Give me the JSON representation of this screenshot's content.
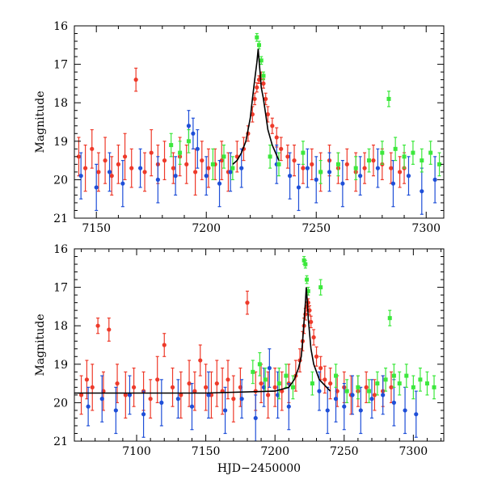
{
  "chart_data": [
    {
      "type": "scatter",
      "panel": "top",
      "title": "",
      "xlabel": "",
      "ylabel": "Magnitude",
      "xlim": [
        7140,
        7308
      ],
      "ylim": [
        21,
        16
      ],
      "y_inverted": true,
      "xticks": [
        7150,
        7200,
        7250,
        7300
      ],
      "xtick_labels": [
        "7150",
        "7200",
        "7250",
        "7300"
      ],
      "yticks": [
        16,
        17,
        18,
        19,
        20,
        21
      ],
      "ytick_labels": [
        "16",
        "17",
        "18",
        "19",
        "20",
        "21"
      ],
      "series": [
        {
          "name": "red",
          "color": "#ee3a2a",
          "x": [
            7142,
            7145,
            7148,
            7151,
            7154,
            7157,
            7160,
            7163,
            7166,
            7168,
            7172,
            7175,
            7178,
            7181,
            7185,
            7188,
            7191,
            7195,
            7198,
            7201,
            7204,
            7207,
            7210,
            7214,
            7217,
            7219,
            7221,
            7222,
            7223,
            7224,
            7225,
            7226,
            7227,
            7228,
            7230,
            7232,
            7234,
            7237,
            7240,
            7244,
            7248,
            7252,
            7256,
            7260,
            7264,
            7268,
            7272,
            7276,
            7280,
            7284,
            7288,
            7290
          ],
          "y": [
            19.4,
            19.7,
            19.2,
            19.8,
            19.5,
            19.9,
            19.6,
            19.4,
            19.7,
            17.4,
            19.8,
            19.3,
            19.6,
            19.5,
            19.7,
            19.4,
            19.6,
            19.8,
            19.5,
            19.7,
            19.6,
            19.5,
            19.8,
            19.4,
            19.2,
            18.8,
            18.3,
            17.9,
            17.6,
            17.4,
            17.3,
            17.5,
            17.9,
            18.3,
            18.6,
            18.9,
            19.2,
            19.4,
            19.5,
            19.7,
            19.6,
            19.8,
            19.5,
            19.7,
            19.6,
            19.8,
            19.7,
            19.5,
            19.6,
            19.7,
            19.8,
            19.7
          ],
          "yerr": [
            0.5,
            0.6,
            0.5,
            0.5,
            0.6,
            0.5,
            0.5,
            0.6,
            0.5,
            0.3,
            0.5,
            0.6,
            0.5,
            0.5,
            0.4,
            0.5,
            0.5,
            0.6,
            0.5,
            0.5,
            0.4,
            0.5,
            0.5,
            0.4,
            0.3,
            0.2,
            0.2,
            0.15,
            0.12,
            0.1,
            0.1,
            0.12,
            0.15,
            0.2,
            0.2,
            0.25,
            0.3,
            0.3,
            0.4,
            0.4,
            0.4,
            0.5,
            0.4,
            0.4,
            0.4,
            0.5,
            0.4,
            0.4,
            0.4,
            0.4,
            0.4,
            0.4
          ]
        },
        {
          "name": "blue",
          "color": "#1f4fd8",
          "x": [
            7143,
            7150,
            7156,
            7162,
            7170,
            7178,
            7186,
            7192,
            7194,
            7196,
            7200,
            7206,
            7211,
            7216,
            7232,
            7238,
            7242,
            7246,
            7250,
            7256,
            7262,
            7270,
            7278,
            7285,
            7292,
            7298,
            7304
          ],
          "y": [
            19.9,
            20.2,
            19.8,
            20.1,
            19.7,
            20.0,
            19.9,
            18.6,
            18.8,
            19.2,
            19.9,
            20.1,
            19.8,
            19.7,
            19.6,
            19.9,
            20.2,
            19.7,
            20.0,
            19.8,
            20.1,
            19.9,
            19.7,
            20.1,
            19.9,
            20.3,
            20.0
          ],
          "yerr": [
            0.6,
            0.6,
            0.5,
            0.6,
            0.5,
            0.6,
            0.5,
            0.4,
            0.4,
            0.5,
            0.5,
            0.6,
            0.5,
            0.5,
            0.5,
            0.6,
            0.6,
            0.5,
            0.6,
            0.5,
            0.6,
            0.5,
            0.5,
            0.6,
            0.5,
            0.6,
            0.6
          ]
        },
        {
          "name": "green",
          "color": "#3ce83c",
          "x": [
            7184,
            7188,
            7192,
            7203,
            7208,
            7212,
            7223,
            7224,
            7225,
            7226,
            7229,
            7233,
            7244,
            7252,
            7260,
            7268,
            7274,
            7280,
            7283,
            7286,
            7290,
            7294,
            7298,
            7302,
            7306
          ],
          "y": [
            19.1,
            19.3,
            19.0,
            19.6,
            19.4,
            19.7,
            16.3,
            16.5,
            16.9,
            17.3,
            19.4,
            19.6,
            19.3,
            19.8,
            19.6,
            19.7,
            19.5,
            19.3,
            17.9,
            19.2,
            19.4,
            19.3,
            19.5,
            19.3,
            19.6
          ],
          "yerr": [
            0.3,
            0.3,
            0.3,
            0.4,
            0.3,
            0.3,
            0.1,
            0.1,
            0.1,
            0.1,
            0.3,
            0.3,
            0.3,
            0.3,
            0.3,
            0.3,
            0.3,
            0.3,
            0.2,
            0.3,
            0.3,
            0.3,
            0.3,
            0.3,
            0.3
          ]
        }
      ],
      "model_curve": {
        "color": "#000000",
        "x": [
          7212,
          7214,
          7216,
          7218,
          7219,
          7220,
          7221,
          7222,
          7223,
          7223.6,
          7224,
          7224.6,
          7225,
          7226,
          7227,
          7228,
          7230,
          7233
        ],
        "y": [
          19.6,
          19.5,
          19.3,
          19.0,
          18.7,
          18.4,
          17.9,
          17.4,
          16.95,
          16.6,
          16.9,
          17.3,
          17.6,
          17.9,
          18.3,
          18.7,
          19.1,
          19.5
        ]
      }
    },
    {
      "type": "scatter",
      "panel": "bottom",
      "title": "",
      "xlabel": "HJD−2450000",
      "ylabel": "Magnitude",
      "xlim": [
        7055,
        7322
      ],
      "ylim": [
        21,
        16
      ],
      "y_inverted": true,
      "xticks": [
        7100,
        7150,
        7200,
        7250,
        7300
      ],
      "xtick_labels": [
        "7100",
        "7150",
        "7200",
        "7250",
        "7300"
      ],
      "yticks": [
        16,
        17,
        18,
        19,
        20,
        21
      ],
      "ytick_labels": [
        "16",
        "17",
        "18",
        "19",
        "20",
        "21"
      ],
      "series": [
        {
          "name": "red",
          "color": "#ee3a2a",
          "x": [
            7060,
            7064,
            7068,
            7072,
            7076,
            7080,
            7086,
            7092,
            7098,
            7105,
            7110,
            7115,
            7120,
            7126,
            7132,
            7138,
            7142,
            7146,
            7150,
            7154,
            7158,
            7162,
            7166,
            7170,
            7175,
            7180,
            7186,
            7190,
            7195,
            7200,
            7205,
            7210,
            7215,
            7218,
            7220,
            7221,
            7222,
            7223,
            7224,
            7225,
            7226,
            7228,
            7230,
            7233,
            7236,
            7240,
            7245,
            7250,
            7255,
            7260,
            7266,
            7272,
            7278,
            7284
          ],
          "y": [
            19.8,
            19.4,
            19.6,
            18.0,
            19.7,
            18.1,
            19.5,
            19.8,
            19.6,
            19.7,
            19.9,
            19.4,
            18.5,
            19.6,
            19.8,
            19.5,
            19.7,
            18.9,
            19.6,
            19.8,
            19.5,
            19.7,
            19.4,
            19.9,
            19.6,
            17.4,
            19.7,
            19.5,
            19.8,
            19.6,
            19.7,
            19.5,
            19.3,
            18.9,
            18.4,
            18.0,
            17.7,
            17.5,
            17.4,
            17.6,
            17.9,
            18.3,
            18.8,
            19.1,
            19.4,
            19.5,
            19.7,
            19.6,
            19.8,
            19.7,
            19.6,
            19.8,
            19.7,
            19.6
          ],
          "yerr": [
            0.5,
            0.5,
            0.6,
            0.2,
            0.5,
            0.3,
            0.5,
            0.6,
            0.5,
            0.5,
            0.5,
            0.6,
            0.3,
            0.5,
            0.6,
            0.6,
            0.5,
            0.4,
            0.6,
            0.6,
            0.6,
            0.6,
            0.5,
            0.6,
            0.5,
            0.3,
            0.5,
            0.5,
            0.6,
            0.5,
            0.5,
            0.5,
            0.4,
            0.3,
            0.25,
            0.2,
            0.15,
            0.12,
            0.1,
            0.12,
            0.15,
            0.2,
            0.25,
            0.3,
            0.35,
            0.4,
            0.4,
            0.4,
            0.5,
            0.4,
            0.4,
            0.4,
            0.4,
            0.4
          ]
        },
        {
          "name": "blue",
          "color": "#1f4fd8",
          "x": [
            7065,
            7075,
            7085,
            7095,
            7105,
            7118,
            7130,
            7140,
            7152,
            7164,
            7176,
            7186,
            7192,
            7196,
            7202,
            7210,
            7232,
            7238,
            7244,
            7250,
            7256,
            7262,
            7270,
            7278,
            7286,
            7294,
            7302
          ],
          "y": [
            20.1,
            19.9,
            20.2,
            19.8,
            20.3,
            20.0,
            19.9,
            20.1,
            19.8,
            20.2,
            19.9,
            20.4,
            19.6,
            19.1,
            19.8,
            20.1,
            19.7,
            20.2,
            19.9,
            20.1,
            19.8,
            20.2,
            19.9,
            19.8,
            20.0,
            20.2,
            20.3
          ],
          "yerr": [
            0.5,
            0.6,
            0.6,
            0.5,
            0.6,
            0.6,
            0.5,
            0.6,
            0.6,
            0.6,
            0.5,
            0.6,
            0.5,
            0.5,
            0.6,
            0.6,
            0.5,
            0.6,
            0.6,
            0.6,
            0.5,
            0.6,
            0.5,
            0.5,
            0.6,
            0.6,
            0.6
          ]
        },
        {
          "name": "green",
          "color": "#3ce83c",
          "x": [
            7184,
            7189,
            7193,
            7203,
            7208,
            7213,
            7221,
            7222,
            7223,
            7224,
            7227,
            7233,
            7244,
            7252,
            7260,
            7268,
            7274,
            7280,
            7283,
            7286,
            7290,
            7295,
            7300,
            7305,
            7310,
            7315
          ],
          "y": [
            19.2,
            19.0,
            19.4,
            19.5,
            19.3,
            19.6,
            16.3,
            16.4,
            16.8,
            17.1,
            19.5,
            17.0,
            19.3,
            19.7,
            19.6,
            19.7,
            19.5,
            19.4,
            17.8,
            19.3,
            19.5,
            19.3,
            19.6,
            19.4,
            19.5,
            19.6
          ],
          "yerr": [
            0.3,
            0.3,
            0.3,
            0.4,
            0.3,
            0.3,
            0.1,
            0.1,
            0.1,
            0.1,
            0.3,
            0.2,
            0.3,
            0.3,
            0.3,
            0.3,
            0.3,
            0.3,
            0.2,
            0.3,
            0.3,
            0.3,
            0.3,
            0.3,
            0.3,
            0.3
          ]
        }
      ],
      "model_curve": {
        "color": "#000000",
        "x": [
          7055,
          7150,
          7200,
          7210,
          7214,
          7217,
          7219,
          7220,
          7221,
          7222,
          7222.6,
          7223,
          7223.6,
          7224,
          7225,
          7226,
          7228,
          7232,
          7240
        ],
        "y": [
          19.75,
          19.75,
          19.7,
          19.6,
          19.4,
          19.1,
          18.8,
          18.4,
          17.9,
          17.4,
          17.0,
          17.2,
          17.5,
          17.8,
          18.2,
          18.6,
          19.0,
          19.4,
          19.7
        ]
      }
    }
  ]
}
